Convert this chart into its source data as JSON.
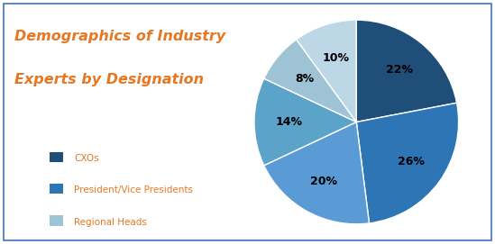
{
  "title_line1": "Demographics of Industry",
  "title_line2": "Experts by Designation",
  "title_color": "#E87722",
  "title_fontsize": 11.5,
  "slices": [
    22,
    26,
    20,
    14,
    8,
    10
  ],
  "labels": [
    "22%",
    "26%",
    "20%",
    "14%",
    "8%",
    "10%"
  ],
  "colors": [
    "#1F4E79",
    "#2E75B6",
    "#5B9BD5",
    "#5BA3C9",
    "#9DC3D4",
    "#BDD7E7"
  ],
  "legend_labels": [
    "CXOs",
    "President/Vice Presidents",
    "Regional Heads"
  ],
  "legend_colors": [
    "#1F4E79",
    "#2E75B6",
    "#9DC3D4"
  ],
  "legend_text_color": "#E87722",
  "background_color": "#FFFFFF",
  "border_color": "#4472C4",
  "label_fontsize": 9,
  "startangle": 90
}
